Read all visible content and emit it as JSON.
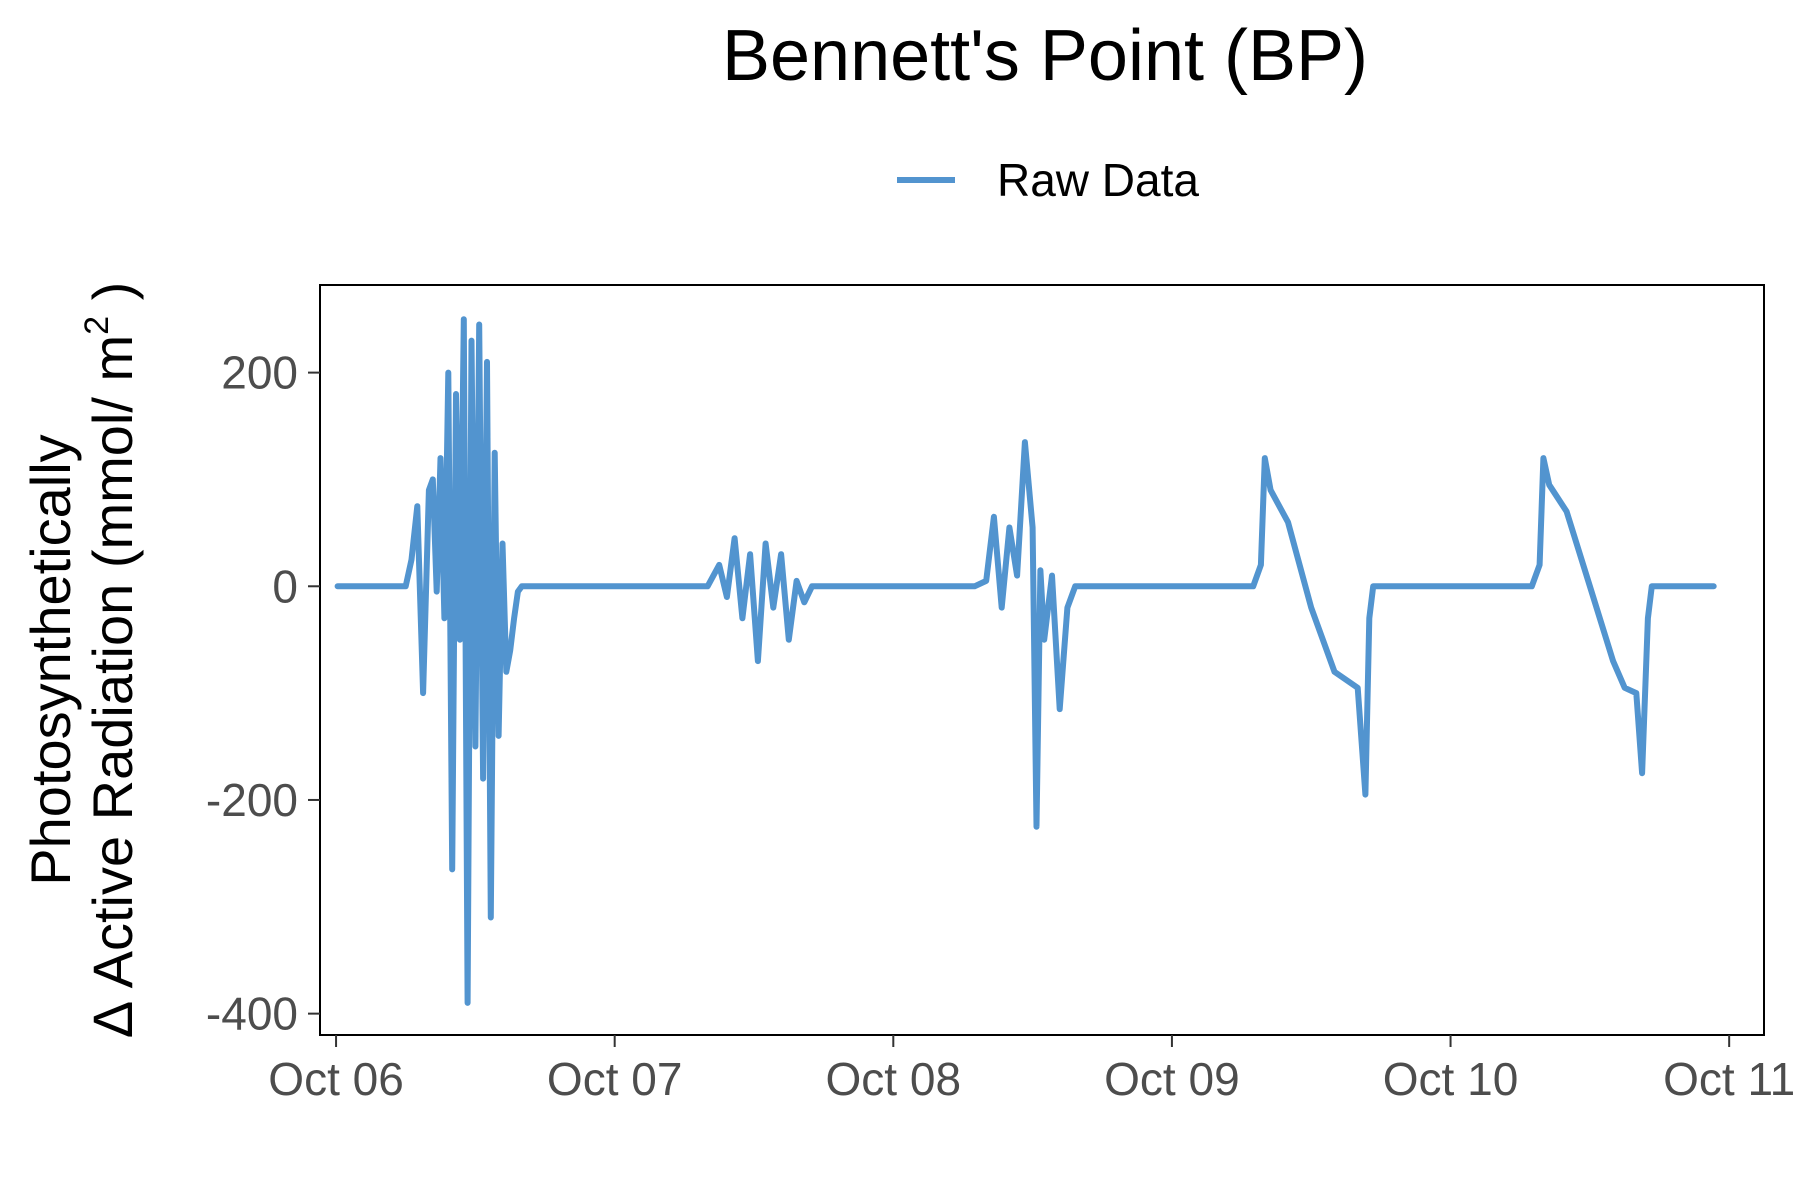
{
  "chart_data": {
    "type": "line",
    "title": "Bennett's Point (BP)",
    "ylabel_line1": "Photosynthetically",
    "ylabel_line2_prefix": "Δ Active Radiation (mmol/ m",
    "ylabel_superscript": "2",
    "ylabel_line2_suffix": " )",
    "xlabel": "",
    "legend": {
      "position": "top",
      "entries": [
        "Raw Data"
      ]
    },
    "grid": false,
    "xlim": [
      "2023-10-05 22:37",
      "2023-10-11 03:00"
    ],
    "ylim": [
      -420,
      282
    ],
    "x_ticks": [
      {
        "value": "2023-10-06 00:00",
        "label": "Oct 06"
      },
      {
        "value": "2023-10-07 00:00",
        "label": "Oct 07"
      },
      {
        "value": "2023-10-08 00:00",
        "label": "Oct 08"
      },
      {
        "value": "2023-10-09 00:00",
        "label": "Oct 09"
      },
      {
        "value": "2023-10-10 00:00",
        "label": "Oct 10"
      },
      {
        "value": "2023-10-11 00:00",
        "label": "Oct 11"
      }
    ],
    "y_ticks": [
      {
        "value": 200,
        "label": "200"
      },
      {
        "value": 0,
        "label": "0"
      },
      {
        "value": -200,
        "label": "-200"
      },
      {
        "value": -400,
        "label": "-400"
      }
    ],
    "series": [
      {
        "name": "Raw Data",
        "color": "#5294cf",
        "x": [
          "2023-10-06 00:08",
          "2023-10-06 06:00",
          "2023-10-06 06:30",
          "2023-10-06 07:00",
          "2023-10-06 07:30",
          "2023-10-06 08:00",
          "2023-10-06 08:20",
          "2023-10-06 08:40",
          "2023-10-06 09:00",
          "2023-10-06 09:20",
          "2023-10-06 09:40",
          "2023-10-06 10:00",
          "2023-10-06 10:20",
          "2023-10-06 10:40",
          "2023-10-06 11:00",
          "2023-10-06 11:20",
          "2023-10-06 11:40",
          "2023-10-06 12:00",
          "2023-10-06 12:20",
          "2023-10-06 12:40",
          "2023-10-06 13:00",
          "2023-10-06 13:20",
          "2023-10-06 13:40",
          "2023-10-06 14:00",
          "2023-10-06 14:20",
          "2023-10-06 14:40",
          "2023-10-06 15:00",
          "2023-10-06 15:20",
          "2023-10-06 15:40",
          "2023-10-06 16:00",
          "2023-10-06 16:30",
          "2023-10-06 17:00",
          "2023-10-06 17:30",
          "2023-10-06 18:30",
          "2023-10-06 19:00",
          "2023-10-07 07:00",
          "2023-10-07 08:00",
          "2023-10-07 09:00",
          "2023-10-07 09:40",
          "2023-10-07 10:20",
          "2023-10-07 11:00",
          "2023-10-07 11:40",
          "2023-10-07 12:20",
          "2023-10-07 13:00",
          "2023-10-07 13:40",
          "2023-10-07 14:20",
          "2023-10-07 15:00",
          "2023-10-07 15:40",
          "2023-10-07 16:20",
          "2023-10-07 17:00",
          "2023-10-07 18:00",
          "2023-10-07 19:00",
          "2023-10-08 07:00",
          "2023-10-08 08:00",
          "2023-10-08 08:40",
          "2023-10-08 09:20",
          "2023-10-08 10:00",
          "2023-10-08 10:40",
          "2023-10-08 11:20",
          "2023-10-08 12:00",
          "2023-10-08 12:20",
          "2023-10-08 12:40",
          "2023-10-08 13:00",
          "2023-10-08 13:40",
          "2023-10-08 14:20",
          "2023-10-08 15:00",
          "2023-10-08 15:40",
          "2023-10-08 16:20",
          "2023-10-08 17:00",
          "2023-10-08 18:00",
          "2023-10-08 19:00",
          "2023-10-09 07:00",
          "2023-10-09 07:40",
          "2023-10-09 08:00",
          "2023-10-09 08:30",
          "2023-10-09 10:00",
          "2023-10-09 12:00",
          "2023-10-09 14:00",
          "2023-10-09 16:00",
          "2023-10-09 16:40",
          "2023-10-09 17:00",
          "2023-10-09 17:20",
          "2023-10-09 17:40",
          "2023-10-09 18:30",
          "2023-10-10 07:00",
          "2023-10-10 07:40",
          "2023-10-10 08:00",
          "2023-10-10 08:30",
          "2023-10-10 10:00",
          "2023-10-10 12:00",
          "2023-10-10 14:00",
          "2023-10-10 15:00",
          "2023-10-10 16:00",
          "2023-10-10 16:30",
          "2023-10-10 17:00",
          "2023-10-10 17:20",
          "2023-10-10 18:00",
          "2023-10-10 18:40",
          "2023-10-10 22:40"
        ],
        "values": [
          0,
          0,
          25,
          75,
          -100,
          90,
          100,
          -5,
          120,
          -30,
          200,
          -265,
          180,
          -50,
          250,
          -390,
          230,
          -150,
          245,
          -180,
          210,
          -310,
          125,
          -140,
          40,
          -80,
          -60,
          -30,
          -5,
          0,
          0,
          0,
          0,
          0,
          0,
          0,
          0,
          20,
          -10,
          45,
          -30,
          30,
          -70,
          40,
          -20,
          30,
          -50,
          5,
          -15,
          0,
          0,
          0,
          0,
          5,
          65,
          -20,
          55,
          10,
          135,
          55,
          -225,
          15,
          -50,
          10,
          -115,
          -20,
          0,
          0,
          0,
          0,
          0,
          0,
          20,
          120,
          90,
          60,
          -20,
          -80,
          -95,
          -195,
          -30,
          0,
          0,
          0,
          0,
          20,
          120,
          95,
          70,
          0,
          -70,
          -95,
          -100,
          -175,
          -30,
          0,
          0,
          0,
          0
        ]
      }
    ]
  }
}
